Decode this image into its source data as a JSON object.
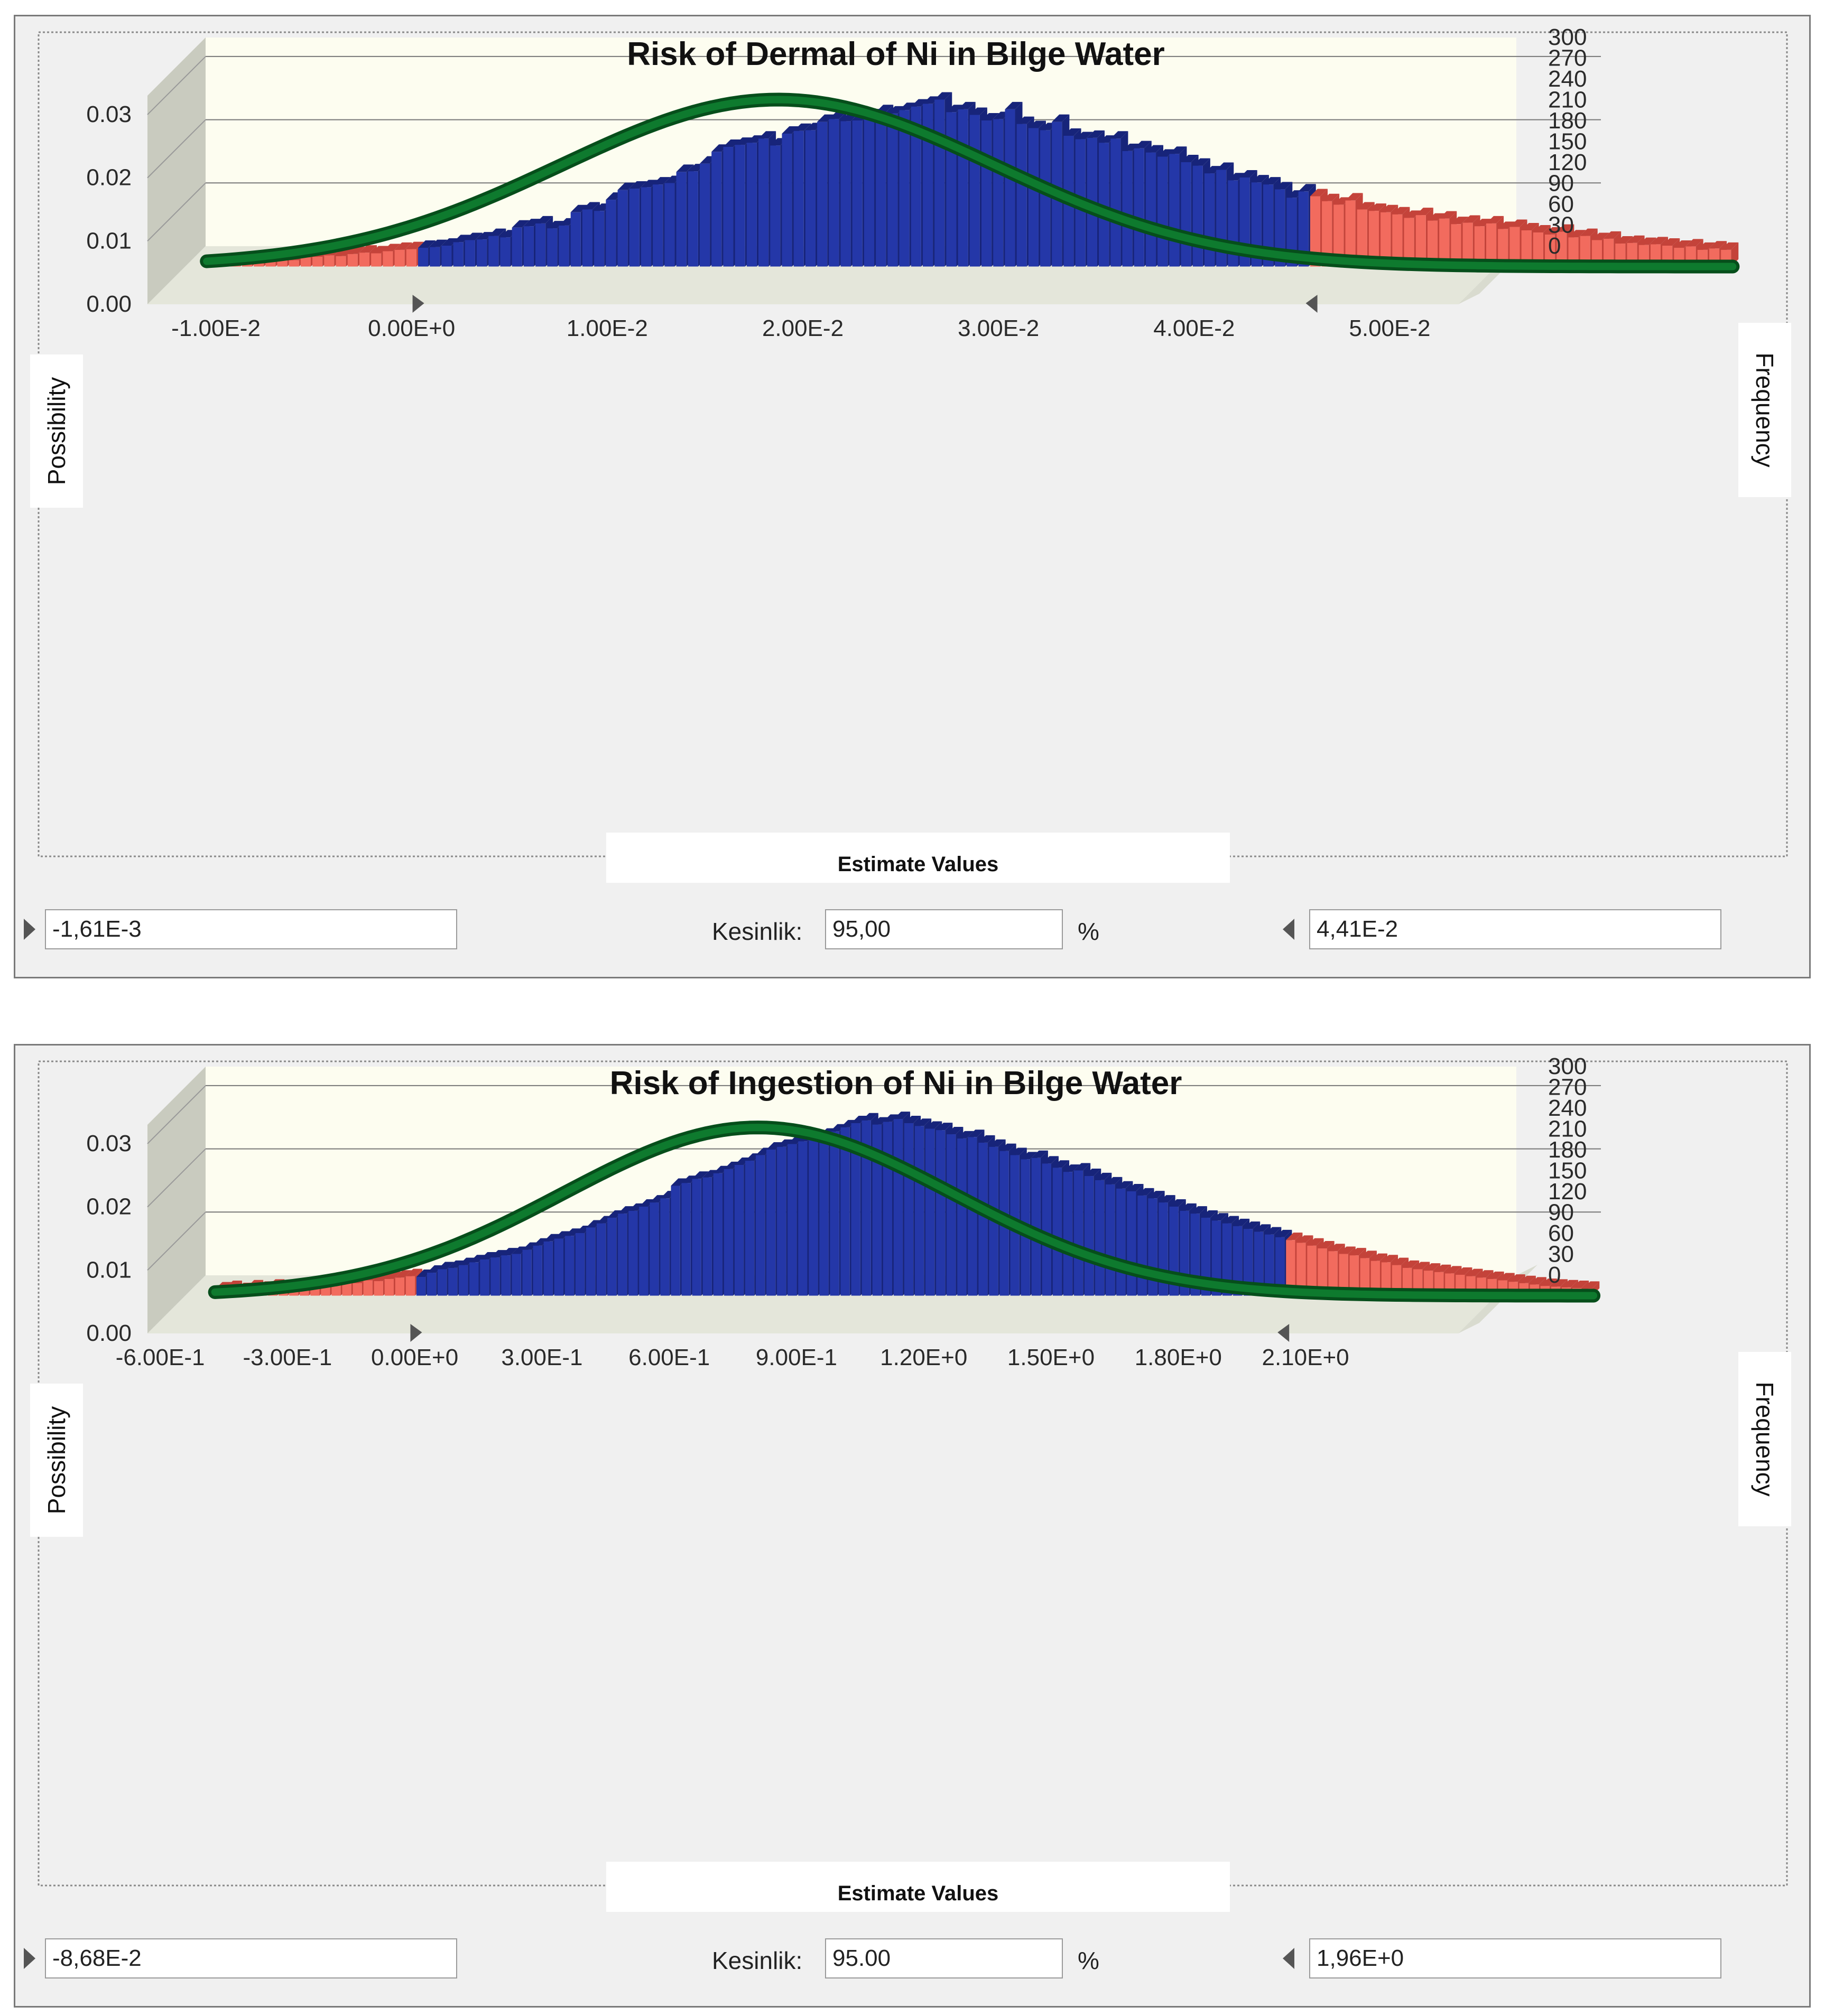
{
  "colors": {
    "panel": "#f0f0f0",
    "plot_bg": "#fdfdf0",
    "bar_main": "#2437a8",
    "bar_main_dark": "#17247a",
    "bar_tail": "#f26b5e",
    "bar_tail_dark": "#c4433a",
    "curve": "#0e7a2e",
    "curve_dark": "#064e1b",
    "wall": "#c9cbbf"
  },
  "charts": [
    {
      "id": "dermal",
      "bottom": {
        "left_value": "-1,61E-3",
        "certainty_label": "Kesinlik:",
        "certainty_value": "95,00",
        "percent_label": "%",
        "right_value": "4,41E-2"
      }
    },
    {
      "id": "ingestion",
      "bottom": {
        "left_value": "-8,68E-2",
        "certainty_label": "Kesinlik:",
        "certainty_value": "95.00",
        "percent_label": "%",
        "right_value": "1,96E+0"
      }
    }
  ],
  "chart_data": [
    {
      "type": "bar",
      "title": "Risk of Dermal of Ni in Bilge Water",
      "xlabel": "Estimate Values",
      "ylabel": "Possibility",
      "y2label": "Frequency",
      "xlim": [
        -0.0135,
        0.0535
      ],
      "ylim": [
        0,
        0.033
      ],
      "y2lim": [
        0,
        300
      ],
      "x_ticks": [
        -0.01,
        0.0,
        0.01,
        0.02,
        0.03,
        0.04,
        0.05
      ],
      "x_tick_labels": [
        "-1.00E-2",
        "0.00E+0",
        "1.00E-2",
        "2.00E-2",
        "3.00E-2",
        "4.00E-2",
        "5.00E-2"
      ],
      "y_ticks": [
        0,
        0.01,
        0.02,
        0.03
      ],
      "y_tick_labels": [
        "0.00",
        "0.01",
        "0.02",
        "0.03"
      ],
      "y2_ticks": [
        0,
        30,
        60,
        90,
        120,
        150,
        180,
        210,
        240,
        270,
        300
      ],
      "y2_tick_labels": [
        "0",
        "30",
        "60",
        "90",
        "120",
        "150",
        "180",
        "210",
        "240",
        "270",
        "300"
      ],
      "bin_start": -0.0124,
      "bin_width": 0.0006,
      "lower_cut": -0.00161,
      "upper_cut": 0.0441,
      "frequencies": [
        6,
        8,
        10,
        9,
        8,
        11,
        12,
        9,
        13,
        14,
        16,
        15,
        18,
        20,
        19,
        22,
        24,
        25,
        27,
        28,
        30,
        35,
        38,
        39,
        44,
        42,
        56,
        58,
        62,
        55,
        59,
        78,
        82,
        80,
        96,
        110,
        112,
        114,
        118,
        120,
        136,
        137,
        148,
        165,
        172,
        175,
        178,
        184,
        174,
        191,
        195,
        196,
        208,
        212,
        209,
        210,
        216,
        222,
        220,
        225,
        230,
        234,
        240,
        222,
        226,
        218,
        210,
        212,
        226,
        205,
        199,
        196,
        208,
        188,
        183,
        185,
        178,
        184,
        166,
        170,
        164,
        158,
        162,
        150,
        145,
        134,
        139,
        124,
        128,
        121,
        118,
        111,
        99,
        108,
        101,
        94,
        89,
        95,
        82,
        80,
        78,
        75,
        70,
        74,
        66,
        69,
        61,
        63,
        58,
        62,
        54,
        57,
        52,
        49,
        46,
        50,
        42,
        44,
        38,
        40,
        33,
        34,
        31,
        32,
        30,
        27,
        29,
        24,
        26,
        24
      ],
      "curve": {
        "mean": 0.0168,
        "sd": 0.0111,
        "peak": 0.0264
      }
    },
    {
      "type": "bar",
      "title": "Risk of Ingestion of Ni in Bilge Water",
      "xlabel": "Estimate Values",
      "ylabel": "Possibility",
      "y2label": "Frequency",
      "xlim": [
        -0.63,
        2.46
      ],
      "ylim": [
        0,
        0.033
      ],
      "y2lim": [
        0,
        300
      ],
      "x_ticks": [
        -0.6,
        -0.3,
        0.0,
        0.3,
        0.6,
        0.9,
        1.2,
        1.5,
        1.8,
        2.1
      ],
      "x_tick_labels": [
        "-6.00E-1",
        "-3.00E-1",
        "0.00E+0",
        "3.00E-1",
        "6.00E-1",
        "9.00E-1",
        "1.20E+0",
        "1.50E+0",
        "1.80E+0",
        "2.10E+0"
      ],
      "y_ticks": [
        0,
        0.01,
        0.02,
        0.03
      ],
      "y_tick_labels": [
        "0.00",
        "0.01",
        "0.02",
        "0.03"
      ],
      "y2_ticks": [
        0,
        30,
        60,
        90,
        120,
        150,
        180,
        210,
        240,
        270,
        300
      ],
      "y2_tick_labels": [
        "0",
        "30",
        "60",
        "90",
        "120",
        "150",
        "180",
        "210",
        "240",
        "270",
        "300"
      ],
      "bin_start": -0.56,
      "bin_width": 0.025,
      "lower_cut": -0.0868,
      "upper_cut": 1.96,
      "frequencies": [
        9,
        11,
        8,
        12,
        10,
        13,
        9,
        14,
        15,
        13,
        17,
        16,
        19,
        18,
        22,
        21,
        24,
        26,
        28,
        27,
        33,
        38,
        40,
        44,
        48,
        52,
        55,
        58,
        60,
        66,
        72,
        78,
        82,
        86,
        90,
        98,
        104,
        112,
        118,
        122,
        128,
        134,
        140,
        158,
        162,
        168,
        170,
        176,
        182,
        188,
        194,
        202,
        210,
        214,
        218,
        222,
        226,
        230,
        236,
        242,
        248,
        252,
        246,
        250,
        254,
        248,
        244,
        240,
        238,
        232,
        226,
        228,
        220,
        214,
        208,
        202,
        196,
        198,
        190,
        184,
        178,
        180,
        172,
        166,
        160,
        154,
        150,
        144,
        140,
        134,
        128,
        122,
        118,
        112,
        108,
        104,
        100,
        96,
        92,
        88,
        84,
        80,
        76,
        72,
        68,
        64,
        60,
        58,
        54,
        50,
        48,
        44,
        40,
        38,
        36,
        34,
        32,
        30,
        28,
        26,
        24,
        22,
        20,
        18,
        16,
        14,
        13,
        12,
        11,
        10
      ],
      "curve": {
        "mean": 0.72,
        "sd": 0.46,
        "peak": 0.0266
      }
    }
  ]
}
